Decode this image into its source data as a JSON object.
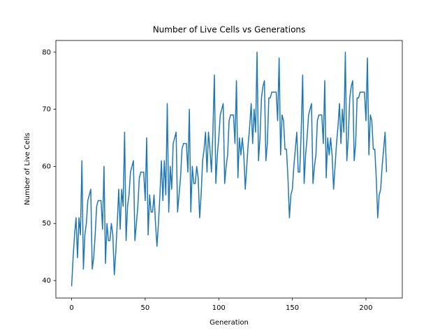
{
  "chart_data": {
    "type": "line",
    "title": "Number of Live Cells vs Generations",
    "x_label": "Generation",
    "y_label": "Number of Live Cells",
    "color": "#1f77b4",
    "xlim": [
      -10.7,
      224.7
    ],
    "ylim": [
      36.95,
      82.05
    ],
    "xticks": [
      0,
      50,
      100,
      150,
      200
    ],
    "yticks": [
      40,
      50,
      60,
      70,
      80
    ],
    "x": [
      0,
      1,
      2,
      3,
      4,
      5,
      6,
      7,
      8,
      9,
      10,
      11,
      12,
      13,
      14,
      15,
      16,
      17,
      18,
      19,
      20,
      21,
      22,
      23,
      24,
      25,
      26,
      27,
      28,
      29,
      30,
      31,
      32,
      33,
      34,
      35,
      36,
      37,
      38,
      39,
      40,
      41,
      42,
      43,
      44,
      45,
      46,
      47,
      48,
      49,
      50,
      51,
      52,
      53,
      54,
      55,
      56,
      57,
      58,
      59,
      60,
      61,
      62,
      63,
      64,
      65,
      66,
      67,
      68,
      69,
      70,
      71,
      72,
      73,
      74,
      75,
      76,
      77,
      78,
      79,
      80,
      81,
      82,
      83,
      84,
      85,
      86,
      87,
      88,
      89,
      90,
      91,
      92,
      93,
      94,
      95,
      96,
      97,
      98,
      99,
      100,
      101,
      102,
      103,
      104,
      105,
      106,
      107,
      108,
      109,
      110,
      111,
      112,
      113,
      114,
      115,
      116,
      117,
      118,
      119,
      120,
      121,
      122,
      123,
      124,
      125,
      126,
      127,
      128,
      129,
      130,
      131,
      132,
      133,
      134,
      135,
      136,
      137,
      138,
      139,
      140,
      141,
      142,
      143,
      144,
      145,
      146,
      147,
      148,
      149,
      150,
      151,
      152,
      153,
      154,
      155,
      156,
      157,
      158,
      159,
      160,
      161,
      162,
      163,
      164,
      165,
      166,
      167,
      168,
      169,
      170,
      171,
      172,
      173,
      174,
      175,
      176,
      177,
      178,
      179,
      180,
      181,
      182,
      183,
      184,
      185,
      186,
      187,
      188,
      189,
      190,
      191,
      192,
      193,
      194,
      195,
      196,
      197,
      198,
      199,
      200,
      201,
      202,
      203,
      204,
      205,
      206,
      207,
      208,
      209,
      210,
      211,
      212,
      213,
      214
    ],
    "values": [
      39,
      44,
      48,
      51,
      44,
      51,
      48,
      61,
      42,
      48,
      50,
      54,
      55,
      56,
      42,
      44,
      48,
      53,
      54,
      54,
      54,
      49,
      60,
      43,
      50,
      47,
      47,
      50,
      48,
      41,
      45,
      50,
      56,
      49,
      56,
      53,
      66,
      47,
      53,
      55,
      59,
      60,
      61,
      47,
      50,
      53,
      58,
      59,
      59,
      59,
      54,
      65,
      48,
      55,
      52,
      52,
      55,
      50,
      46,
      50,
      55,
      61,
      54,
      61,
      55,
      71,
      52,
      60,
      56,
      64,
      65,
      66,
      52,
      55,
      58,
      63,
      64,
      64,
      64,
      59,
      70,
      52,
      60,
      57,
      57,
      60,
      58,
      51,
      55,
      61,
      63,
      66,
      59,
      66,
      63,
      59,
      66,
      76,
      57,
      62,
      65,
      69,
      70,
      71,
      57,
      60,
      62,
      68,
      69,
      69,
      69,
      64,
      75,
      58,
      65,
      62,
      65,
      62,
      56,
      60,
      64,
      67,
      71,
      64,
      70,
      66,
      80,
      61,
      65,
      72,
      74,
      75,
      61,
      64,
      72,
      72,
      73,
      73,
      73,
      73,
      68,
      79,
      62,
      69,
      68,
      63,
      63,
      58,
      51,
      55,
      56,
      60,
      63,
      66,
      59,
      59,
      66,
      76,
      57,
      62,
      65,
      69,
      70,
      71,
      57,
      60,
      62,
      68,
      69,
      69,
      69,
      64,
      75,
      58,
      65,
      62,
      65,
      62,
      56,
      60,
      64,
      67,
      71,
      64,
      70,
      66,
      80,
      61,
      65,
      72,
      74,
      75,
      61,
      64,
      72,
      72,
      73,
      73,
      73,
      73,
      68,
      79,
      62,
      69,
      68,
      63,
      63,
      58,
      51,
      55,
      56,
      60,
      63,
      66,
      59
    ]
  }
}
